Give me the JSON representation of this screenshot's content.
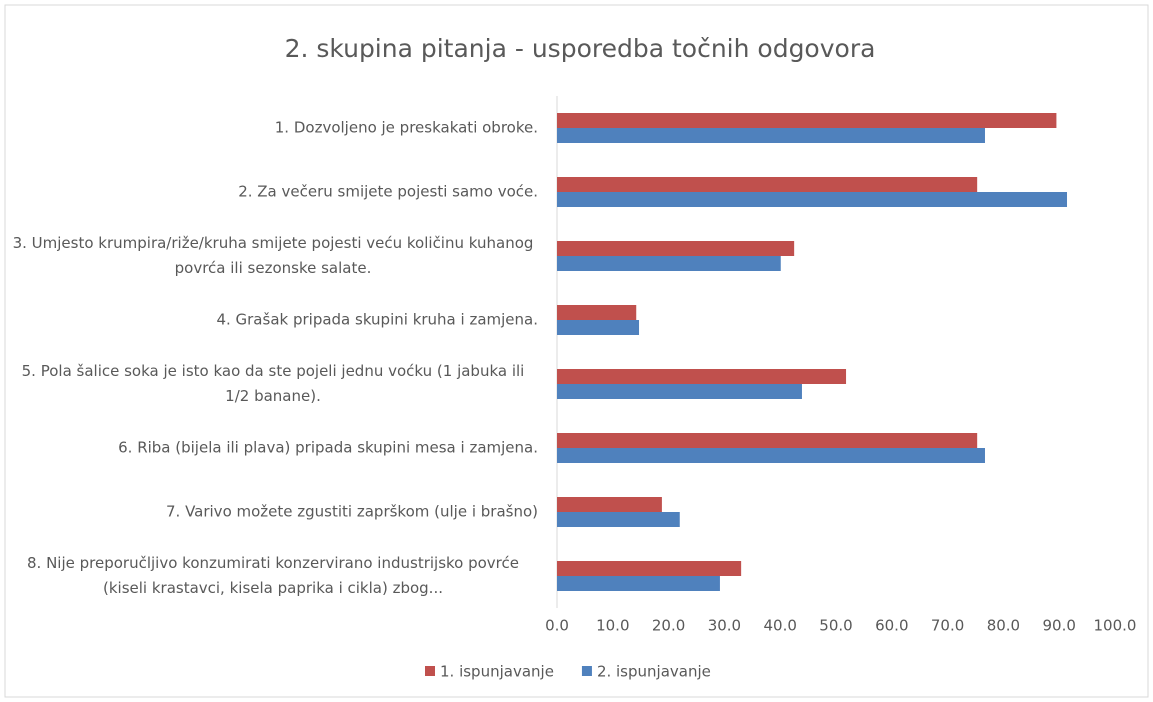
{
  "chart_data": {
    "type": "hbar",
    "title": "2. skupina pitanja - usporedba točnih odgovora",
    "categories": [
      "1. Dozvoljeno je preskakati obroke.",
      "2. Za večeru smijete pojesti samo voće.",
      "3. Umjesto krumpira/riže/kruha smijete pojesti veću količinu kuhanog povrća ili sezonske salate.",
      "4. Grašak pripada skupini kruha i zamjena.",
      "5. Pola šalice soka je isto kao da ste pojeli jednu voćku (1 jabuka ili 1/2 banane).",
      "6. Riba (bijela ili plava) pripada skupini mesa i zamjena.",
      "7. Varivo možete zgustiti zaprškom (ulje i brašno)",
      "8. Nije preporučljivo konzumirati konzervirano industrijsko povrće (kiseli krastavci, kisela paprika i cikla) zbog..."
    ],
    "series": [
      {
        "name": "1. ispunjavanje",
        "color": "#c0504d",
        "values": [
          89.5,
          75.3,
          42.5,
          14.2,
          51.8,
          75.3,
          18.8,
          33.0
        ]
      },
      {
        "name": "2. ispunjavanje",
        "color": "#4f81bd",
        "values": [
          76.7,
          91.4,
          40.1,
          14.7,
          43.9,
          76.7,
          22.0,
          29.2
        ]
      }
    ],
    "xlim": [
      0,
      100
    ],
    "xticks": [
      {
        "value": 0,
        "label": "0.0"
      },
      {
        "value": 10,
        "label": "10.0"
      },
      {
        "value": 20,
        "label": "20.0"
      },
      {
        "value": 30,
        "label": "30.0"
      },
      {
        "value": 40,
        "label": "40.0"
      },
      {
        "value": 50,
        "label": "50.0"
      },
      {
        "value": 60,
        "label": "60.0"
      },
      {
        "value": 70,
        "label": "70.0"
      },
      {
        "value": 80,
        "label": "80.0"
      },
      {
        "value": 90,
        "label": "90.0"
      },
      {
        "value": 100,
        "label": "100.0"
      }
    ],
    "grid": false,
    "legend": "bottom"
  }
}
